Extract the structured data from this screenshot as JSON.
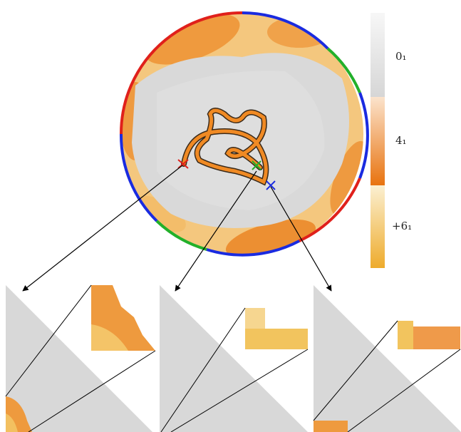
{
  "legend": {
    "labels": [
      "0₁",
      "4₁",
      "+6₁"
    ]
  }
}
